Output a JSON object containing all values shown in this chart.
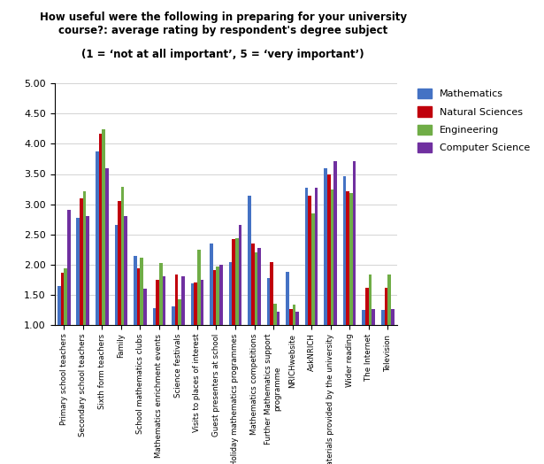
{
  "title": "How useful were the following in preparing for your university\ncourse?: average rating by respondent's degree subject",
  "subtitle": "(1 = ‘not at all important’, 5 = ‘very important’)",
  "categories": [
    "Primary school teachers",
    "Secondary school teachers",
    "Sixth form teachers",
    "Family",
    "School mathematics clubs",
    "Mathematics enrichment events",
    "Science festivals",
    "Visits to places of interest",
    "Guest presenters at school",
    "Holiday mathematics programmes",
    "Mathematics competitions",
    "Further Mathematics support\nprogramme",
    "NRICHwebsite",
    "AskNRICH",
    "Materials provided by the university",
    "Wider reading",
    "The Internet",
    "Television"
  ],
  "series_names": [
    "Mathematics",
    "Natural Sciences",
    "Engineering",
    "Computer Science"
  ],
  "series_data": {
    "Mathematics": [
      1.65,
      2.78,
      3.87,
      2.65,
      2.14,
      1.27,
      1.31,
      1.68,
      2.35,
      2.04,
      3.14,
      1.78,
      1.88,
      3.27,
      3.6,
      3.46,
      1.25,
      1.25
    ],
    "Natural Sciences": [
      1.87,
      3.1,
      4.17,
      3.05,
      1.93,
      1.75,
      1.84,
      1.7,
      1.91,
      2.42,
      2.35,
      2.04,
      1.26,
      3.14,
      3.49,
      3.21,
      1.62,
      1.62
    ],
    "Engineering": [
      1.93,
      3.21,
      4.24,
      3.29,
      2.11,
      2.03,
      1.42,
      2.25,
      1.96,
      2.43,
      2.2,
      1.35,
      1.34,
      2.85,
      3.25,
      3.18,
      1.84,
      1.84
    ],
    "Computer Science": [
      2.9,
      2.8,
      3.6,
      2.8,
      1.6,
      1.8,
      1.81,
      1.75,
      2.0,
      2.65,
      2.28,
      1.22,
      1.22,
      3.27,
      3.71,
      3.71,
      1.26,
      1.26
    ]
  },
  "colors": {
    "Mathematics": "#4472C4",
    "Natural Sciences": "#C0000C",
    "Engineering": "#70AD47",
    "Computer Science": "#7030A0"
  },
  "ylim": [
    1.0,
    5.0
  ],
  "yticks": [
    1.0,
    1.5,
    2.0,
    2.5,
    3.0,
    3.5,
    4.0,
    4.5,
    5.0
  ],
  "bar_width": 0.17
}
